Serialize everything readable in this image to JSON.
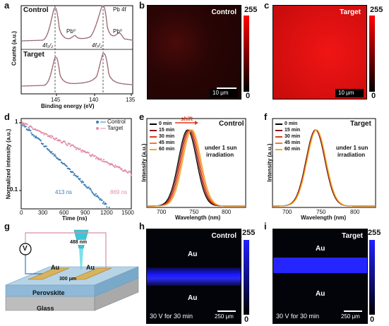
{
  "figure": {
    "panel_labels": {
      "a": "a",
      "b": "b",
      "c": "c",
      "d": "d",
      "e": "e",
      "f": "f",
      "g": "g",
      "h": "h",
      "i": "i"
    }
  },
  "panel_a": {
    "top_label": "Control",
    "bottom_label": "Target",
    "pb_label": "Pb 4f",
    "pb0_left": "Pb⁰",
    "pb0_right": "Pb⁰",
    "peak_52": "4f₅/₂",
    "peak_72": "4f₇/₂",
    "ylabel": "Counts (a.u.)",
    "xlabel": "Binding energy (eV)",
    "xticks": [
      "145",
      "140",
      "135"
    ]
  },
  "panel_b": {
    "label": "Control",
    "cbar_max": "255",
    "cbar_min": "0",
    "scale": "10 μm"
  },
  "panel_c": {
    "label": "Target",
    "cbar_max": "255",
    "cbar_min": "0",
    "scale": "10 μm"
  },
  "panel_d": {
    "ylabel": "Normalized intensity (a.u.)",
    "xlabel": "Time (ns)",
    "legend": [
      "Control",
      "Target"
    ],
    "tau_control": "413 ns",
    "tau_target": "869 ns",
    "xticks": [
      "0",
      "300",
      "600",
      "900",
      "1200",
      "1500"
    ],
    "yticks": [
      "1",
      "0.1"
    ],
    "colors": {
      "control": "#3b7db5",
      "target": "#e08fa6"
    }
  },
  "panel_e": {
    "title": "Control",
    "legend": [
      "0 min",
      "15 min",
      "30 min",
      "45 min",
      "60 min"
    ],
    "shift_label": "shift",
    "note_line1": "under 1 sun",
    "note_line2": "irradiation",
    "ylabel": "Intensity (a.u.)",
    "xlabel": "Wavelength (nm)",
    "xticks": [
      "700",
      "750",
      "800"
    ],
    "colors": [
      "#000000",
      "#8b1a1a",
      "#d93a1f",
      "#f07c23",
      "#f5a623"
    ]
  },
  "panel_f": {
    "title": "Target",
    "legend": [
      "0 min",
      "15 min",
      "30 min",
      "45 min",
      "60 min"
    ],
    "note_line1": "under 1 sun",
    "note_line2": "irradiation",
    "ylabel": "Intensity (a.u.)",
    "xlabel": "Wavelength (nm)",
    "xticks": [
      "700",
      "750",
      "800"
    ]
  },
  "panel_g": {
    "voltmeter": "V",
    "laser": "488 nm",
    "electrode_left": "Au",
    "electrode_right": "Au",
    "gap": "300 μm",
    "layer_top": "Perovskite",
    "layer_bottom": "Glass"
  },
  "panel_h": {
    "label": "Control",
    "au_top": "Au",
    "au_bottom": "Au",
    "bias": "30 V for 30 min",
    "scale": "250 μm",
    "cbar_max": "255",
    "cbar_min": "0"
  },
  "panel_i": {
    "label": "Target",
    "au_top": "Au",
    "au_bottom": "Au",
    "bias": "30 V for 30 min",
    "scale": "250 μm",
    "cbar_max": "255",
    "cbar_min": "0"
  }
}
